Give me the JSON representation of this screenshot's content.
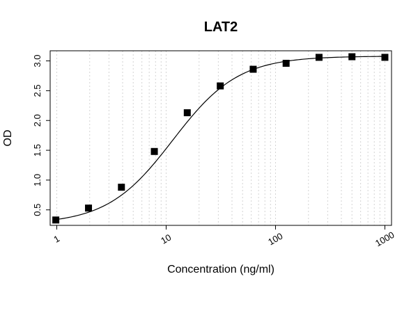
{
  "chart_data": {
    "type": "scatter",
    "title": "LAT2",
    "xlabel": "Concentration (ng/ml)",
    "ylabel": "OD",
    "x_scale": "log",
    "xlim": [
      0.87,
      1150
    ],
    "ylim": [
      0.24,
      3.17
    ],
    "x_ticks": [
      1,
      10,
      100,
      1000
    ],
    "x_tick_labels": [
      "1",
      "10",
      "100",
      "1000"
    ],
    "y_ticks": [
      0.5,
      1.0,
      1.5,
      2.0,
      2.5,
      3.0
    ],
    "y_tick_labels": [
      "0.5",
      "1.0",
      "1.5",
      "2.0",
      "2.5",
      "3.0"
    ],
    "grid": "vertical dotted at log minor ticks",
    "series": [
      {
        "x": [
          0.98,
          1.95,
          3.9,
          7.8,
          15.6,
          31.25,
          62.5,
          125,
          250,
          500,
          1000
        ],
        "y": [
          0.33,
          0.53,
          0.88,
          1.48,
          2.13,
          2.58,
          2.86,
          2.96,
          3.06,
          3.07,
          3.06
        ]
      }
    ],
    "fit_curve": {
      "model": "4PL",
      "bottom": 0.26,
      "top": 3.08,
      "ec50": 11.5,
      "hill": 1.45
    },
    "marker": "square",
    "color": "#000000"
  }
}
